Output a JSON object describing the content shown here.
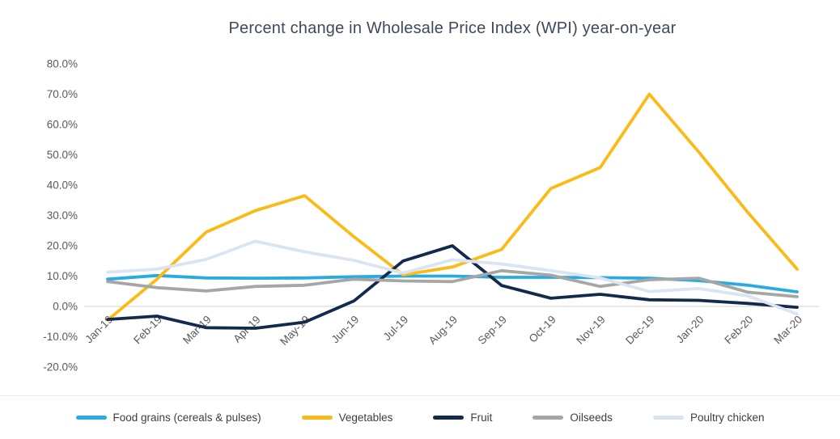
{
  "chart_data": {
    "type": "line",
    "title": "Percent change in Wholesale Price Index (WPI) year-on-year",
    "categories": [
      "Jan-19",
      "Feb-19",
      "Mar-19",
      "Apr-19",
      "May-19",
      "Jun-19",
      "Jul-19",
      "Aug-19",
      "Sep-19",
      "Oct-19",
      "Nov-19",
      "Dec-19",
      "Jan-20",
      "Feb-20",
      "Mar-20"
    ],
    "series": [
      {
        "name": "Food grains (cereals & pulses)",
        "color": "#29ABE2",
        "values": [
          9.0,
          10.2,
          9.4,
          9.3,
          9.4,
          9.8,
          10.0,
          10.0,
          9.6,
          9.6,
          9.5,
          9.3,
          8.5,
          7.0,
          4.8
        ]
      },
      {
        "name": "Vegetables",
        "color": "#FBBA16",
        "values": [
          -4.5,
          9.0,
          24.5,
          31.6,
          36.5,
          23.0,
          10.4,
          13.0,
          18.8,
          38.9,
          45.8,
          70.0,
          51.0,
          31.0,
          12.3
        ]
      },
      {
        "name": "Fruit",
        "color": "#14294E",
        "values": [
          -4.3,
          -3.2,
          -7.0,
          -7.2,
          -5.2,
          1.8,
          15.0,
          20.0,
          6.9,
          2.7,
          4.0,
          2.2,
          2.0,
          1.0,
          -0.3
        ]
      },
      {
        "name": "Oilseeds",
        "color": "#A6A6A6",
        "values": [
          8.2,
          6.2,
          5.1,
          6.6,
          7.0,
          9.0,
          8.4,
          8.2,
          11.8,
          10.3,
          6.6,
          8.8,
          9.3,
          4.7,
          3.2
        ]
      },
      {
        "name": "Poultry chicken",
        "color": "#DAE5F1",
        "values": [
          11.3,
          12.3,
          15.5,
          21.5,
          18.0,
          15.2,
          11.0,
          15.4,
          14.0,
          11.8,
          9.4,
          4.9,
          5.9,
          3.5,
          -2.5
        ]
      }
    ],
    "y_axis": {
      "min": -20,
      "max": 80,
      "tick_step": 10,
      "tick_values": [
        80,
        70,
        60,
        50,
        40,
        30,
        20,
        10,
        0,
        -10,
        -20
      ],
      "tick_labels": [
        "80.0%",
        "70.0%",
        "60.0%",
        "50.0%",
        "40.0%",
        "30.0%",
        "20.0%",
        "10.0%",
        "0.0%",
        "-10.0%",
        "-20.0%"
      ]
    },
    "grid": "zero-line-only",
    "legend_position": "bottom",
    "colors": {
      "title_text": "#3E4A5B",
      "axis_text": "#595959",
      "zero_gridline": "#D9D9D9",
      "legend_text": "#3D3D3D",
      "background": "#FFFFFF"
    }
  }
}
